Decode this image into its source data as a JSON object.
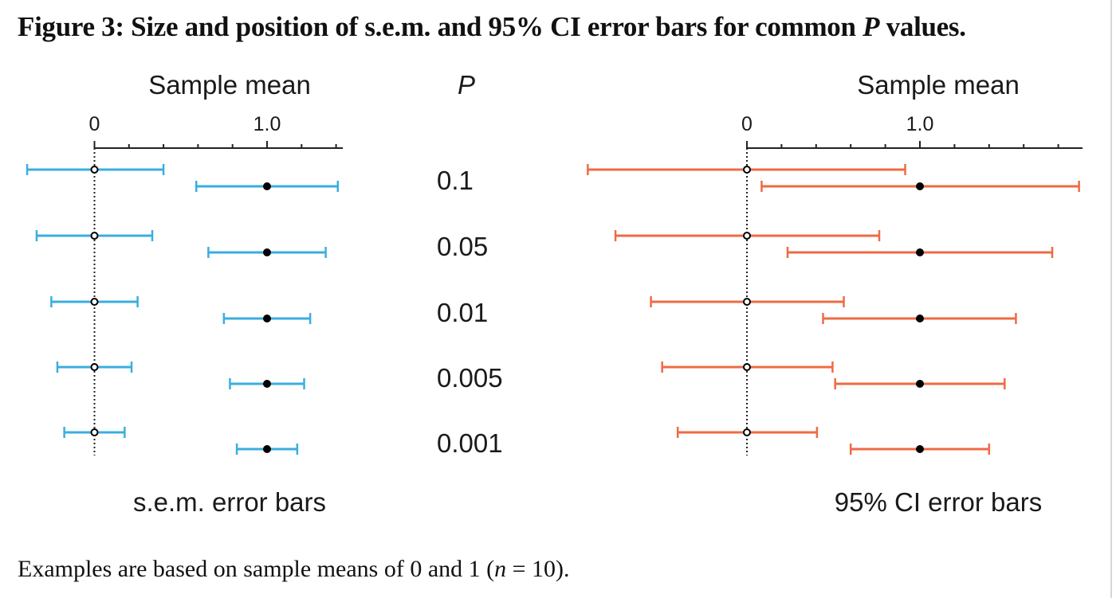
{
  "figure": {
    "title_prefix": "Figure 3: Size and position of s.e.m. and 95% CI error bars for common ",
    "title_var": "P",
    "title_suffix": " values.",
    "caption_prefix": "Examples are based on sample means of 0 and 1 (",
    "caption_var": "n",
    "caption_suffix": " = 10)."
  },
  "colors": {
    "sem": "#3aaee0",
    "ci": "#ee6b45",
    "axis": "#222222",
    "marker": "#000000"
  },
  "chart_data": [
    {
      "type": "errorbar",
      "title": "s.e.m. error bars",
      "xlabel": "Sample mean",
      "xlim": [
        -0.4,
        1.43
      ],
      "xticks_major": [
        0,
        1.0
      ],
      "xtick_labels": [
        "0",
        "1.0"
      ],
      "minor_tick_step": 0.2,
      "reference_line": 0,
      "categories_label": "P",
      "categories": [
        "0.1",
        "0.05",
        "0.01",
        "0.005",
        "0.001"
      ],
      "series": [
        {
          "marker": "open",
          "mean": [
            0,
            0,
            0,
            0,
            0
          ],
          "lower": [
            -0.39,
            -0.335,
            -0.25,
            -0.215,
            -0.175
          ],
          "upper": [
            0.4,
            0.335,
            0.25,
            0.215,
            0.175
          ]
        },
        {
          "marker": "filled",
          "mean": [
            1,
            1,
            1,
            1,
            1
          ],
          "lower": [
            0.59,
            0.66,
            0.75,
            0.785,
            0.825
          ],
          "upper": [
            1.41,
            1.34,
            1.25,
            1.215,
            1.175
          ]
        }
      ]
    },
    {
      "type": "errorbar",
      "title": "95% CI error bars",
      "xlabel": "Sample mean",
      "xlim": [
        -0.95,
        1.95
      ],
      "xticks_major": [
        0,
        1.0
      ],
      "xtick_labels": [
        "0",
        "1.0"
      ],
      "minor_tick_step": 0.2,
      "reference_line": 0,
      "categories_label": "P",
      "categories": [
        "0.1",
        "0.05",
        "0.01",
        "0.005",
        "0.001"
      ],
      "series": [
        {
          "marker": "open",
          "mean": [
            0,
            0,
            0,
            0,
            0
          ],
          "lower": [
            -0.92,
            -0.76,
            -0.555,
            -0.49,
            -0.4
          ],
          "upper": [
            0.915,
            0.765,
            0.56,
            0.495,
            0.405
          ]
        },
        {
          "marker": "filled",
          "mean": [
            1,
            1,
            1,
            1,
            1
          ],
          "lower": [
            0.085,
            0.235,
            0.44,
            0.51,
            0.6
          ],
          "upper": [
            1.92,
            1.765,
            1.555,
            1.49,
            1.4
          ]
        }
      ]
    }
  ]
}
